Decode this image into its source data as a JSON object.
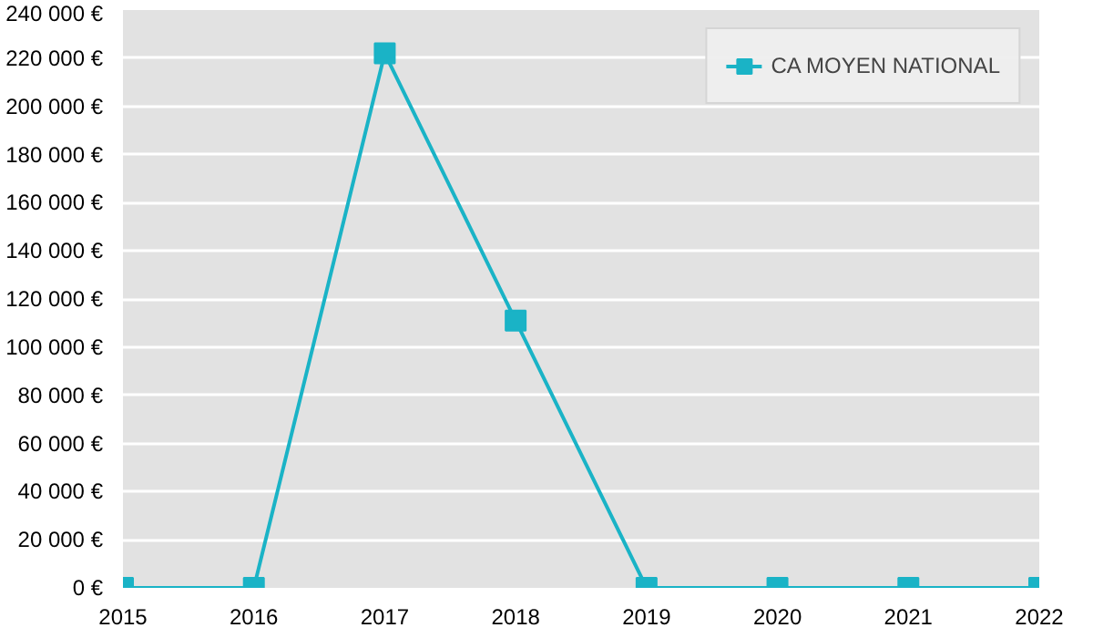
{
  "chart_data": {
    "type": "line",
    "x": [
      2015,
      2016,
      2017,
      2018,
      2019,
      2020,
      2021,
      2022
    ],
    "series": [
      {
        "name": "CA MOYEN NATIONAL",
        "color": "#1ab3c6",
        "values": [
          0,
          0,
          222000,
          111000,
          0,
          0,
          0,
          0
        ]
      }
    ],
    "xlim": [
      2015,
      2022
    ],
    "xticks": [
      2015,
      2016,
      2017,
      2018,
      2019,
      2020,
      2021,
      2022
    ],
    "ylim": [
      0,
      240000
    ],
    "yticks": [
      {
        "value": 0,
        "label": "0 €"
      },
      {
        "value": 20000,
        "label": "20 000 €"
      },
      {
        "value": 40000,
        "label": "40 000 €"
      },
      {
        "value": 60000,
        "label": "60 000 €"
      },
      {
        "value": 80000,
        "label": "80 000 €"
      },
      {
        "value": 100000,
        "label": "100 000 €"
      },
      {
        "value": 120000,
        "label": "120 000 €"
      },
      {
        "value": 140000,
        "label": "140 000 €"
      },
      {
        "value": 160000,
        "label": "160 000 €"
      },
      {
        "value": 180000,
        "label": "180 000 €"
      },
      {
        "value": 200000,
        "label": "200 000 €"
      },
      {
        "value": 220000,
        "label": "220 000 €"
      },
      {
        "value": 240000,
        "label": "240 000 €"
      }
    ],
    "grid": "y",
    "legend": "top right",
    "marker": "square",
    "line_style": "solid"
  }
}
